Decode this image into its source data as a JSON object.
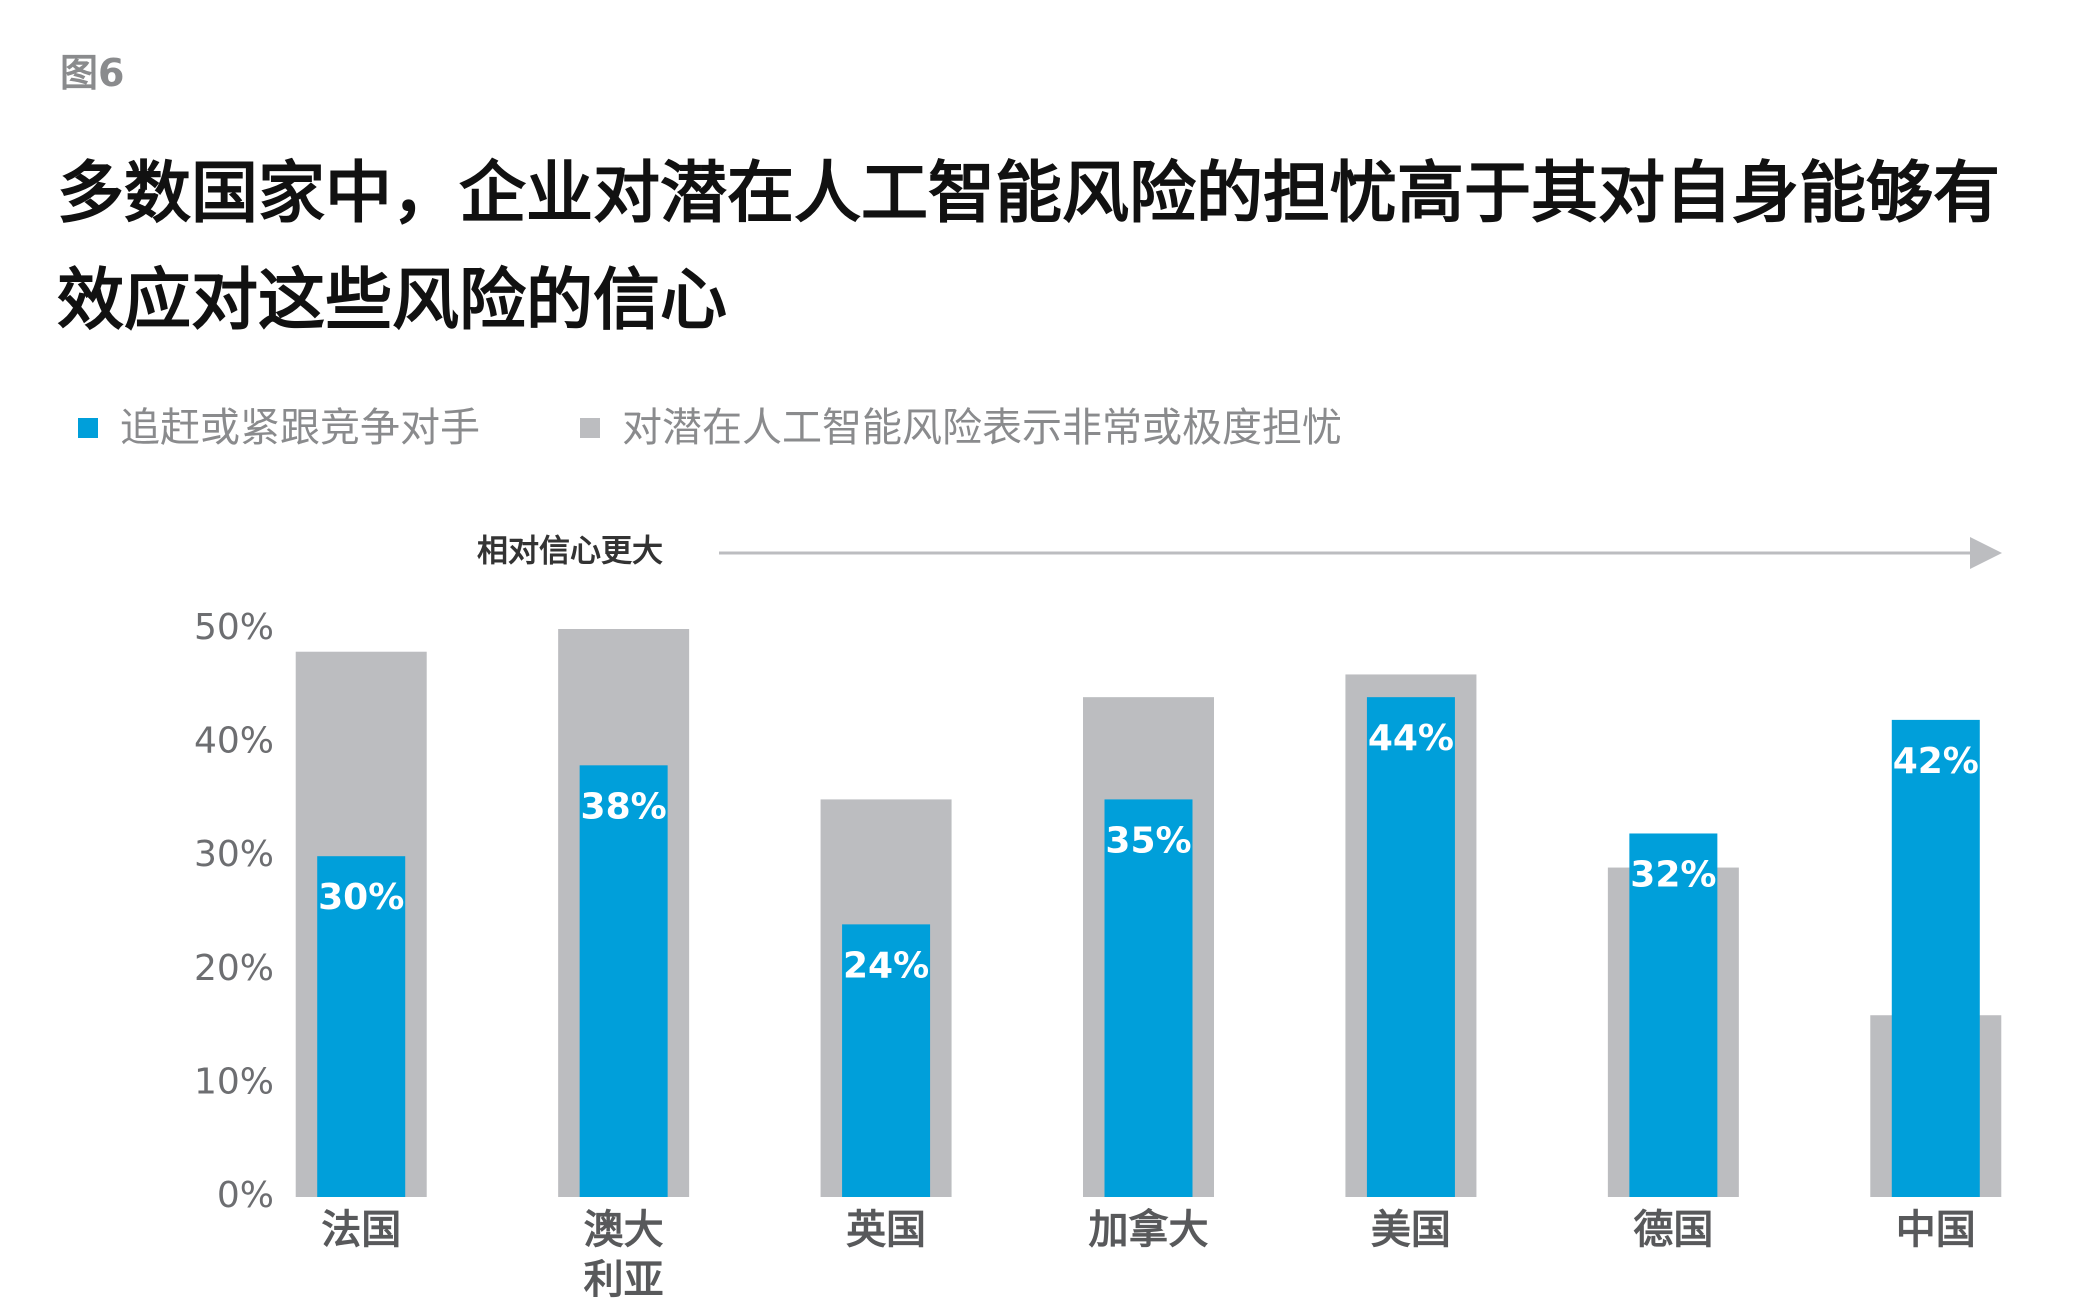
{
  "figure_label": "图6",
  "chart_data": {
    "type": "bar",
    "title": "多数国家中，企业对潜在人工智能风险的担忧高于其对自身能够有效应对这些风险的信心",
    "annotation": "相对信心更大",
    "categories": [
      "法国",
      "澳大\n利亚",
      "英国",
      "加拿大",
      "美国",
      "德国",
      "中国"
    ],
    "series": [
      {
        "name": "对潜在人工智能风险表示非常或极度担忧",
        "color": "#bcbdc0",
        "values": [
          48,
          50,
          35,
          44,
          46,
          29,
          16
        ]
      },
      {
        "name": "追赶或紧跟竞争对手",
        "color": "#009fda",
        "values": [
          30,
          38,
          24,
          35,
          44,
          32,
          42
        ],
        "value_labels": [
          "30%",
          "38%",
          "24%",
          "35%",
          "44%",
          "32%",
          "42%"
        ]
      }
    ],
    "ylim": [
      0,
      50
    ],
    "yticks": [
      {
        "value": 0,
        "label": "0%"
      },
      {
        "value": 10,
        "label": "10%"
      },
      {
        "value": 20,
        "label": "20%"
      },
      {
        "value": 30,
        "label": "30%"
      },
      {
        "value": 40,
        "label": "40%"
      },
      {
        "value": 50,
        "label": "50%"
      }
    ],
    "legend_order": [
      1,
      0
    ],
    "grid": false
  }
}
